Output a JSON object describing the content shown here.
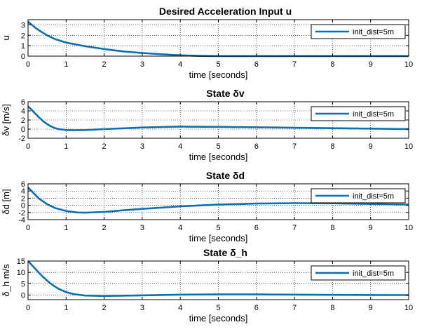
{
  "chart_data": [
    {
      "type": "line",
      "title": "Desired Acceleration Input u",
      "xlabel": "time [seconds]",
      "ylabel": "u",
      "xlim": [
        0,
        10
      ],
      "ylim": [
        0,
        3.5
      ],
      "xticks": [
        "0",
        "1",
        "2",
        "3",
        "4",
        "5",
        "6",
        "7",
        "8",
        "9",
        "10"
      ],
      "yticks": [
        "0",
        "1",
        "2",
        "3"
      ],
      "yticks_values": [
        0,
        1,
        2,
        3
      ],
      "grid": true,
      "legend_position": "top-right",
      "series": [
        {
          "name": "init_dist=5m",
          "color": "#0b6fb0",
          "x": [
            0,
            0.1,
            0.2,
            0.3,
            0.5,
            0.7,
            1.0,
            1.5,
            2.0,
            2.5,
            3.0,
            3.5,
            4.0,
            4.5,
            5.0,
            6.0,
            7.0,
            8.0,
            9.0,
            10.0
          ],
          "y": [
            3.3,
            3.0,
            2.7,
            2.45,
            2.0,
            1.65,
            1.3,
            0.95,
            0.68,
            0.45,
            0.3,
            0.18,
            0.08,
            0.02,
            -0.02,
            -0.05,
            -0.05,
            -0.04,
            -0.02,
            0.0
          ]
        }
      ]
    },
    {
      "type": "line",
      "title": "State δv",
      "xlabel": "time [seconds]",
      "ylabel": "δv [m/s]",
      "xlim": [
        0,
        10
      ],
      "ylim": [
        -2,
        6
      ],
      "xticks": [
        "0",
        "1",
        "2",
        "3",
        "4",
        "5",
        "6",
        "7",
        "8",
        "9",
        "10"
      ],
      "yticks": [
        "-2",
        "0",
        "2",
        "4",
        "6"
      ],
      "yticks_values": [
        -2,
        0,
        2,
        4,
        6
      ],
      "grid": true,
      "legend_position": "top-right",
      "series": [
        {
          "name": "init_dist=5m",
          "color": "#0b6fb0",
          "x": [
            0,
            0.1,
            0.2,
            0.3,
            0.4,
            0.5,
            0.6,
            0.7,
            0.8,
            1.0,
            1.2,
            1.5,
            2.0,
            3.0,
            4.0,
            5.0,
            6.0,
            7.0,
            8.0,
            9.0,
            10.0
          ],
          "y": [
            5.0,
            4.2,
            3.3,
            2.5,
            1.7,
            1.1,
            0.6,
            0.25,
            0.0,
            -0.2,
            -0.25,
            -0.2,
            0.0,
            0.35,
            0.55,
            0.5,
            0.4,
            0.3,
            0.2,
            0.1,
            0.0
          ]
        }
      ]
    },
    {
      "type": "line",
      "title": "State δd",
      "xlabel": "time [seconds]",
      "ylabel": "δd [m]",
      "xlim": [
        0,
        10
      ],
      "ylim": [
        -4,
        6
      ],
      "xticks": [
        "0",
        "1",
        "2",
        "3",
        "4",
        "5",
        "6",
        "7",
        "8",
        "9",
        "10"
      ],
      "yticks": [
        "-4",
        "-2",
        "0",
        "2",
        "4",
        "6"
      ],
      "yticks_values": [
        -4,
        -2,
        0,
        2,
        4,
        6
      ],
      "grid": true,
      "legend_position": "top-right",
      "series": [
        {
          "name": "init_dist=5m",
          "color": "#0b6fb0",
          "x": [
            0,
            0.1,
            0.2,
            0.3,
            0.5,
            0.7,
            1.0,
            1.3,
            1.5,
            2.0,
            2.5,
            3.0,
            4.0,
            5.0,
            6.0,
            7.0,
            8.0,
            9.0,
            10.0
          ],
          "y": [
            5.0,
            3.9,
            2.8,
            1.8,
            0.3,
            -0.7,
            -1.6,
            -2.0,
            -2.05,
            -1.85,
            -1.4,
            -1.0,
            -0.3,
            0.2,
            0.5,
            0.6,
            0.55,
            0.4,
            0.2
          ]
        }
      ]
    },
    {
      "type": "line",
      "title": "State δ_h",
      "xlabel": "time [seconds]",
      "ylabel": "δ_h m/s",
      "xlim": [
        0,
        10
      ],
      "ylim": [
        -2,
        15
      ],
      "xticks": [
        "0",
        "1",
        "2",
        "3",
        "4",
        "5",
        "6",
        "7",
        "8",
        "9",
        "10"
      ],
      "yticks": [
        "0",
        "5",
        "10",
        "15"
      ],
      "yticks_values": [
        0,
        5,
        10,
        15
      ],
      "grid": true,
      "legend_position": "top-right",
      "series": [
        {
          "name": "init_dist=5m",
          "color": "#0b6fb0",
          "x": [
            0,
            0.1,
            0.2,
            0.3,
            0.4,
            0.5,
            0.6,
            0.7,
            0.8,
            1.0,
            1.2,
            1.5,
            2.0,
            3.0,
            4.0,
            5.0,
            6.0,
            7.0,
            8.0,
            9.0,
            10.0
          ],
          "y": [
            15,
            13.2,
            11.4,
            9.6,
            7.9,
            6.4,
            5.0,
            3.8,
            2.8,
            1.3,
            0.4,
            -0.2,
            -0.4,
            -0.1,
            0.2,
            0.3,
            0.3,
            0.2,
            0.1,
            0.05,
            0.0
          ]
        }
      ]
    }
  ]
}
